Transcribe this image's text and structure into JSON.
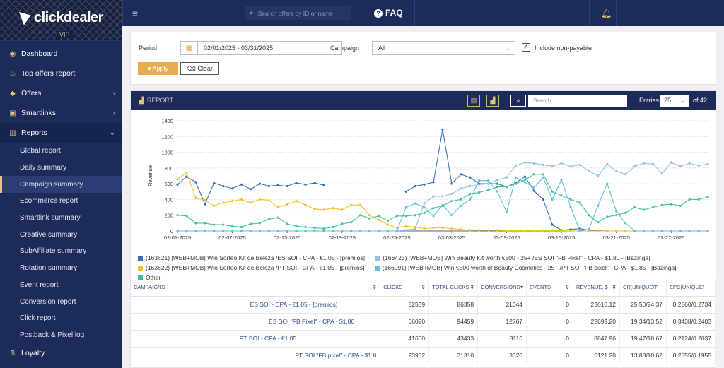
{
  "brand": {
    "name": "clickdealer",
    "tier": "VIP"
  },
  "topbar": {
    "search_placeholder": "Search offers by ID or name",
    "faq_label": "FAQ"
  },
  "sidebar": {
    "items": [
      {
        "label": "Dashboard",
        "icon": "palette-icon"
      },
      {
        "label": "Top offers report",
        "icon": "fire-icon"
      },
      {
        "label": "Offers",
        "icon": "tag-icon"
      },
      {
        "label": "Smartlinks",
        "icon": "screen-icon"
      },
      {
        "label": "Reports",
        "icon": "bar-chart-icon"
      }
    ],
    "report_subitems": [
      "Global report",
      "Daily summary",
      "Campaign summary",
      "Ecommerce report",
      "Smartlink summary",
      "Creative summary",
      "SubAffiliate summary",
      "Rotation summary",
      "Event report",
      "Conversion report",
      "Click report",
      "Postback & Pixel log"
    ],
    "active_subitem": "Campaign summary",
    "loyalty": {
      "label": "Loyalty",
      "icon": "dollar-icon"
    }
  },
  "filters": {
    "period_label": "Period",
    "period_value": "02/01/2025 - 03/31/2025",
    "campaign_label": "Campaign",
    "campaign_value": "All",
    "include_nonpayable_label": "Include non-payable",
    "include_nonpayable_checked": true,
    "apply_label": "Apply",
    "clear_label": "Clear"
  },
  "report": {
    "title": "REPORT",
    "search_placeholder": "Search",
    "entries_label": "Entries",
    "entries_value": "25",
    "entries_total": "of 42"
  },
  "chart_data": {
    "type": "line",
    "ylabel": "Revenue",
    "xlabel": "",
    "ylim": [
      0,
      1400
    ],
    "yticks": [
      0,
      200,
      400,
      600,
      800,
      1000,
      1200,
      1400
    ],
    "x_start": "02-01-2025",
    "x_end": "03-31-2025",
    "xtick_labels": [
      "02-01-2025",
      "02-07-2025",
      "02-13-2025",
      "02-19-2025",
      "02-25-2025",
      "03-03-2025",
      "03-09-2025",
      "03-15-2025",
      "03-21-2025",
      "03-27-2025"
    ],
    "grid": true,
    "legend_position": "bottom",
    "series": [
      {
        "name": "(163621) [WEB+MOB] Win Sorteo Kit de Beleza /ES SOI - CPA - €1.05 - [premios]",
        "color": "#3a6fb3",
        "values": [
          590,
          690,
          620,
          340,
          610,
          570,
          540,
          590,
          530,
          600,
          570,
          580,
          570,
          610,
          590,
          610,
          580,
          null,
          null,
          null,
          null,
          null,
          null,
          null,
          null,
          500,
          570,
          590,
          620,
          1290,
          600,
          720,
          680,
          600,
          600,
          600,
          560,
          610,
          690,
          510,
          400,
          80,
          10,
          20,
          30,
          10,
          5,
          0,
          0,
          0,
          0,
          0,
          0,
          0,
          0,
          0,
          0,
          0,
          0
        ]
      },
      {
        "name": "(166423) [WEB+MOB] Win Beauty Kit worth €500 - 25+ /ES SOI \"FB Pixel\" - CPA - $1.80 - [Bazinga]",
        "color": "#93bde6",
        "values": [
          0,
          0,
          0,
          0,
          0,
          0,
          0,
          0,
          0,
          0,
          0,
          0,
          0,
          0,
          0,
          0,
          0,
          0,
          0,
          0,
          0,
          0,
          0,
          0,
          0,
          10,
          30,
          350,
          440,
          440,
          470,
          540,
          570,
          590,
          600,
          650,
          680,
          830,
          870,
          860,
          840,
          820,
          860,
          820,
          840,
          760,
          700,
          850,
          760,
          720,
          820,
          860,
          850,
          730,
          870,
          820,
          860,
          830,
          850
        ]
      },
      {
        "name": "(163622) [WEB+MOB] Win Sorteo Kit de Beleza /PT SOI - CPA - €1.05 - [premios]",
        "color": "#f2c12e",
        "values": [
          660,
          740,
          420,
          390,
          320,
          360,
          380,
          400,
          360,
          400,
          390,
          300,
          340,
          380,
          330,
          280,
          270,
          290,
          270,
          330,
          330,
          200,
          140,
          80,
          40,
          60,
          50,
          30,
          40,
          40,
          30,
          20,
          10,
          10,
          10,
          10,
          5,
          5,
          5,
          5,
          5,
          5,
          5,
          0,
          0,
          0,
          0,
          0,
          0,
          0,
          0,
          0,
          0,
          0,
          0,
          0,
          0,
          0,
          0
        ]
      },
      {
        "name": "(166091) [WEB+MOB] Win €500 worth of Beauty Cosmetics - 25+ /PT SOI \"FB pixel\" - CPA - $1.85 - [Bazinga]",
        "color": "#5cc2d8",
        "values": [
          0,
          0,
          0,
          0,
          0,
          0,
          0,
          0,
          0,
          0,
          0,
          0,
          0,
          0,
          0,
          0,
          0,
          0,
          0,
          0,
          0,
          0,
          0,
          0,
          0,
          300,
          350,
          300,
          190,
          330,
          200,
          320,
          400,
          640,
          640,
          500,
          240,
          680,
          620,
          550,
          680,
          400,
          650,
          310,
          0,
          20,
          320,
          600,
          250,
          100,
          0,
          0,
          0,
          0,
          0,
          0,
          0,
          0,
          0
        ]
      },
      {
        "name": "Other",
        "color": "#3fc49a",
        "values": [
          200,
          190,
          100,
          100,
          80,
          80,
          60,
          50,
          90,
          100,
          150,
          170,
          90,
          60,
          50,
          40,
          30,
          50,
          90,
          110,
          200,
          160,
          190,
          130,
          190,
          190,
          200,
          230,
          290,
          320,
          380,
          400,
          470,
          490,
          520,
          560,
          560,
          600,
          650,
          720,
          720,
          500,
          450,
          400,
          360,
          200,
          110,
          180,
          200,
          230,
          300,
          270,
          300,
          330,
          340,
          320,
          400,
          400,
          430
        ]
      }
    ]
  },
  "table": {
    "columns": [
      "CAMPAIGNS",
      "CLICKS",
      "TOTAL CLICKS",
      "CONVERSIONS",
      "EVENTS",
      "REVENUE, $",
      "CR(UNIQUE/T",
      "EPC(UNIQUE/"
    ],
    "rows": [
      [
        "ES SOI - CPA - €1.05 - [premios]",
        "82539",
        "86358",
        "21044",
        "0",
        "23610.12",
        "25.50/24.37",
        "0.2860/0.2734"
      ],
      [
        "ES SOI \"FB Pixel\" - CPA - $1.80",
        "66020",
        "94459",
        "12767",
        "0",
        "22699.20",
        "19.34/13.52",
        "0.3438/0.2403"
      ],
      [
        "PT SOI - CPA - €1.05",
        "41660",
        "43433",
        "8110",
        "0",
        "8847.96",
        "19.47/18.67",
        "0.2124/0.2037"
      ],
      [
        "PT SOI \"FB pixel\" - CPA - $1.8",
        "23962",
        "31310",
        "3326",
        "0",
        "6121.20",
        "13.88/10.62",
        "0.2555/0.1955"
      ]
    ]
  }
}
